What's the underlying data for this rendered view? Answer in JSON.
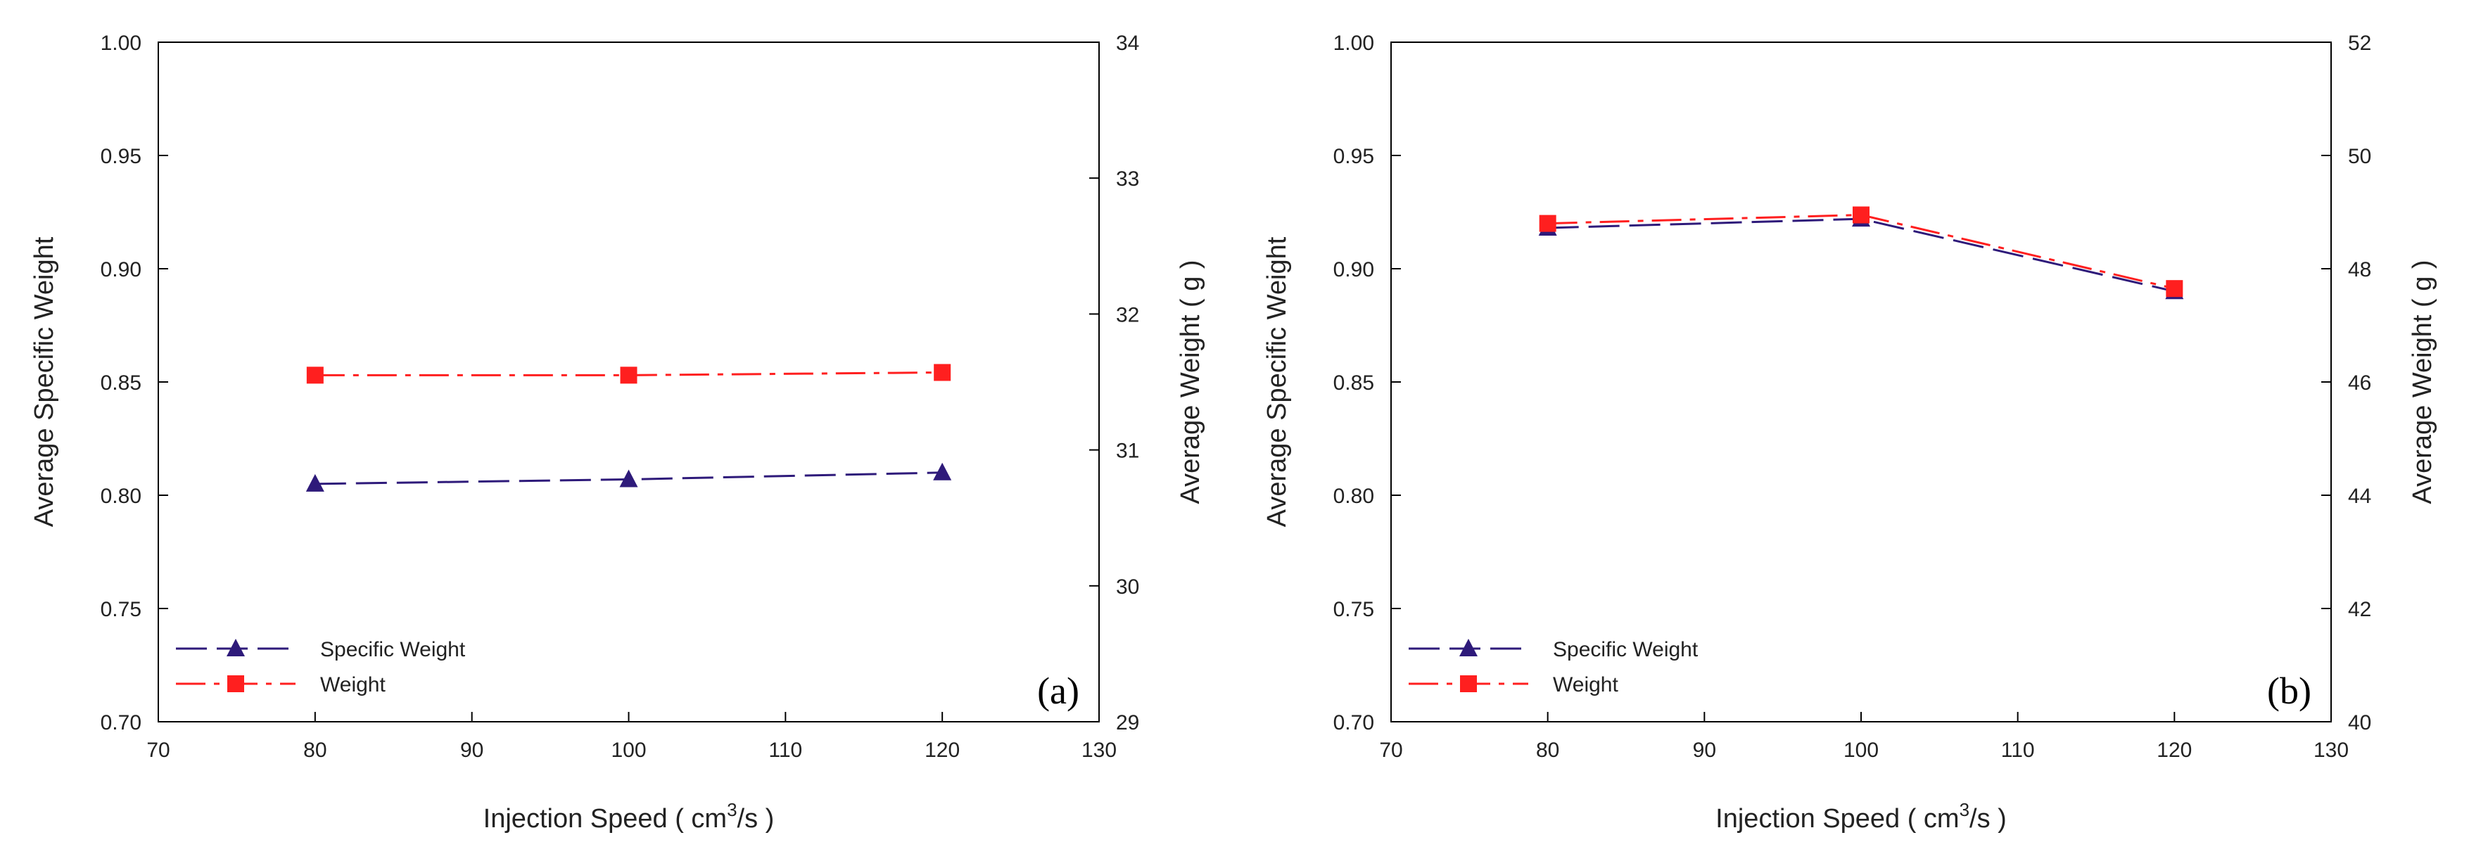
{
  "chart_data": [
    {
      "type": "line",
      "panel_label": "(a)",
      "xlabel": "Injection Speed ( cm",
      "xlabel_sup": "3",
      "xlabel_tail": "/s )",
      "ylabel": "Average Specific Weight",
      "y2label": "Average Weight ( g )",
      "xlim": [
        70,
        130
      ],
      "ylim": [
        0.7,
        1.0
      ],
      "y2lim": [
        29,
        34
      ],
      "xticks": [
        "70",
        "80",
        "90",
        "100",
        "110",
        "120",
        "130"
      ],
      "yticks": [
        "0.70",
        "0.75",
        "0.80",
        "0.85",
        "0.90",
        "0.95",
        "1.00"
      ],
      "y2ticks": [
        "29",
        "30",
        "31",
        "32",
        "33",
        "34"
      ],
      "legend_position": "bottom-left",
      "series": [
        {
          "name": "Specific Weight",
          "axis": "left",
          "marker": "triangle",
          "color": "#2e1a7a",
          "dash": "long-dash",
          "x": [
            80,
            100,
            120
          ],
          "values": [
            0.805,
            0.807,
            0.81
          ]
        },
        {
          "name": "Weight",
          "axis": "right",
          "marker": "square",
          "color": "#ff1f1f",
          "dash": "dash-dot",
          "x": [
            80,
            100,
            120
          ],
          "values": [
            31.55,
            31.55,
            31.57
          ]
        }
      ]
    },
    {
      "type": "line",
      "panel_label": "(b)",
      "xlabel": "Injection Speed ( cm",
      "xlabel_sup": "3",
      "xlabel_tail": "/s )",
      "ylabel": "Average Specific Weight",
      "y2label": "Average Weight ( g )",
      "xlim": [
        70,
        130
      ],
      "ylim": [
        0.7,
        1.0
      ],
      "y2lim": [
        40,
        52
      ],
      "xticks": [
        "70",
        "80",
        "90",
        "100",
        "110",
        "120",
        "130"
      ],
      "yticks": [
        "0.70",
        "0.75",
        "0.80",
        "0.85",
        "0.90",
        "0.95",
        "1.00"
      ],
      "y2ticks": [
        "40",
        "42",
        "44",
        "46",
        "48",
        "50",
        "52"
      ],
      "legend_position": "bottom-left",
      "series": [
        {
          "name": "Specific Weight",
          "axis": "left",
          "marker": "triangle",
          "color": "#2e1a7a",
          "dash": "long-dash",
          "x": [
            80,
            100,
            120
          ],
          "values": [
            0.918,
            0.922,
            0.89
          ]
        },
        {
          "name": "Weight",
          "axis": "right",
          "marker": "square",
          "color": "#ff1f1f",
          "dash": "dash-dot",
          "x": [
            80,
            100,
            120
          ],
          "values": [
            48.8,
            48.95,
            47.65
          ]
        }
      ]
    }
  ]
}
